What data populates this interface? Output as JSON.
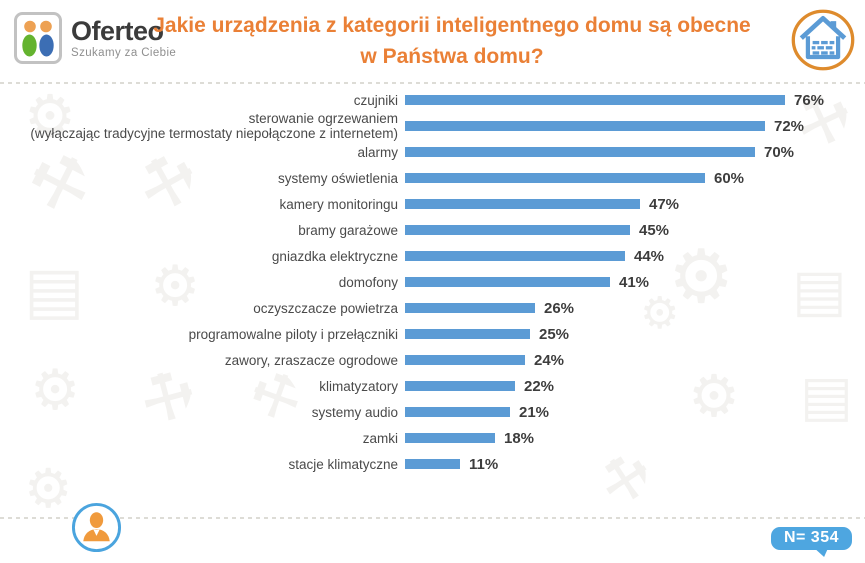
{
  "header": {
    "logo": {
      "brand": "Oferteo",
      "tagline": "Szukamy za Ciebie",
      "icon": "oferteo-two-people-logo",
      "head_color": "#eda153",
      "body_colors": [
        "#64b32f",
        "#3c6eb4"
      ]
    },
    "title": "Jakie urządzenia z kategorii inteligentnego domu są obecne w Państwa domu?",
    "title_color": "#ea8036",
    "house_icon": "smart-home-house-icon",
    "house_ring_color": "#de8b2d",
    "house_color": "#5b9bd5"
  },
  "chart_data": {
    "type": "bar",
    "orientation": "horizontal",
    "title": "Jakie urządzenia z kategorii inteligentnego domu są obecne w Państwa domu?",
    "categories": [
      "czujniki",
      "sterowanie ogrzewaniem\n(wyłączając tradycyjne termostaty niepołączone z internetem)",
      "alarmy",
      "systemy oświetlenia",
      "kamery monitoringu",
      "bramy garażowe",
      "gniazdka elektryczne",
      "domofony",
      "oczyszczacze powietrza",
      "programowalne piloty i przełączniki",
      "zawory, zraszacze ogrodowe",
      "klimatyzatory",
      "systemy audio",
      "zamki",
      "stacje klimatyczne"
    ],
    "values": [
      76,
      72,
      70,
      60,
      47,
      45,
      44,
      41,
      26,
      25,
      24,
      22,
      21,
      18,
      11
    ],
    "value_suffix": "%",
    "xlim": [
      0,
      100
    ],
    "bar_color": "#5b9bd5",
    "grid": false,
    "legend": false,
    "value_labels_position": "end-of-bar"
  },
  "footer": {
    "person_icon": "respondent-person-icon",
    "person_icon_color": "#f09a3c",
    "person_ring_color": "#4aa4de",
    "sample_badge": "N= 354",
    "badge_color": "#4ea6e0"
  },
  "background": {
    "watermark_icons": [
      "gear-icon",
      "hammer-icon",
      "toolbox-icon"
    ],
    "watermark_color": "#f3f2f0"
  }
}
